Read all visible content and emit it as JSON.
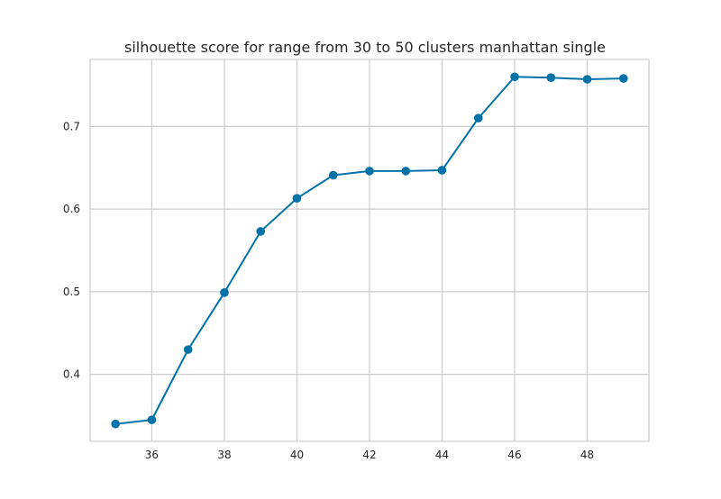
{
  "chart_data": {
    "type": "line",
    "title": "silhouette score for range from 30 to 50 clusters manhattan single",
    "xlabel": "",
    "ylabel": "",
    "x": [
      35,
      36,
      37,
      38,
      39,
      40,
      41,
      42,
      43,
      44,
      45,
      46,
      47,
      48,
      49
    ],
    "series": [
      {
        "values": [
          0.34,
          0.345,
          0.43,
          0.499,
          0.573,
          0.613,
          0.641,
          0.646,
          0.646,
          0.647,
          0.71,
          0.76,
          0.759,
          0.757,
          0.758
        ],
        "color": "#0072a8",
        "marker": "circle"
      }
    ],
    "xlim": [
      34.3,
      49.7
    ],
    "ylim": [
      0.319,
      0.781
    ],
    "xticks": [
      "36",
      "38",
      "40",
      "42",
      "44",
      "46",
      "48"
    ],
    "yticks": [
      "0.4",
      "0.5",
      "0.6",
      "0.7"
    ],
    "grid": true,
    "legend": "none"
  },
  "colors": {
    "grid": "#cccccc",
    "spine": "#cccccc",
    "background": "#ffffff",
    "text": "#262626"
  }
}
